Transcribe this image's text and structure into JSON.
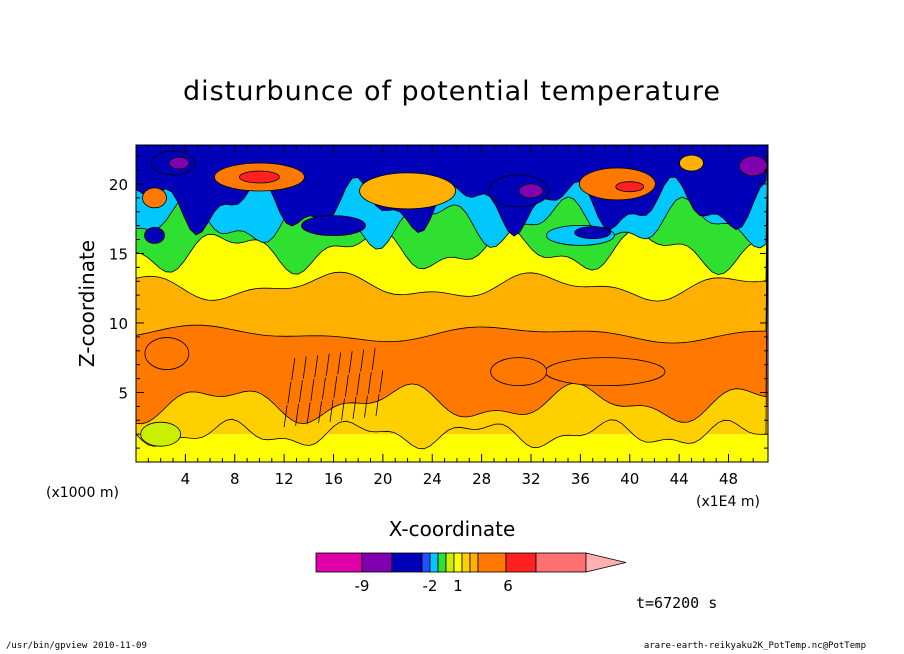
{
  "chart_data": {
    "type": "heatmap",
    "title": "disturbunce of potential temperature",
    "xlabel": "X-coordinate",
    "ylabel": "Z-coordinate",
    "x_unit_note": "(x1E4 m)",
    "y_unit_note": "(x1000 m)",
    "x_ticks": [
      4,
      8,
      12,
      16,
      20,
      24,
      28,
      32,
      36,
      40,
      44,
      48
    ],
    "y_ticks": [
      5,
      10,
      15,
      20
    ],
    "xlim": [
      0,
      51.2
    ],
    "ylim": [
      0,
      22.8
    ],
    "time_label": "t=67200 s",
    "colorbar": {
      "tick_labels": [
        {
          "label": "-9",
          "value": -9
        },
        {
          "label": "-2",
          "value": -2
        },
        {
          "label": "1",
          "value": 1
        },
        {
          "label": "6",
          "value": 6
        }
      ],
      "colors": [
        "#e000a8",
        "#8000b0",
        "#0000b8",
        "#2050ff",
        "#00c8ff",
        "#30e030",
        "#c8f000",
        "#ffff00",
        "#ffd000",
        "#ffb000",
        "#ff7800",
        "#ff2020",
        "#ff7070",
        "#ffb0b0"
      ]
    },
    "bands": [
      {
        "z": [
          0,
          2
        ],
        "color": "#ffff00"
      },
      {
        "z": [
          2,
          4
        ],
        "color": "#ffd000"
      },
      {
        "z": [
          4,
          9
        ],
        "color": "#ff7800"
      },
      {
        "z": [
          9,
          12.5
        ],
        "color": "#ffb000"
      },
      {
        "z": [
          12.5,
          15
        ],
        "color": "#ffff00"
      },
      {
        "z": [
          15,
          17
        ],
        "color": "#30e030"
      },
      {
        "z": [
          17,
          22.8
        ],
        "color": "#0000b8"
      }
    ]
  },
  "footer": {
    "left": "/usr/bin/gpview  2010-11-09",
    "right": "arare-earth-reikyaku2K_PotTemp.nc@PotTemp"
  }
}
